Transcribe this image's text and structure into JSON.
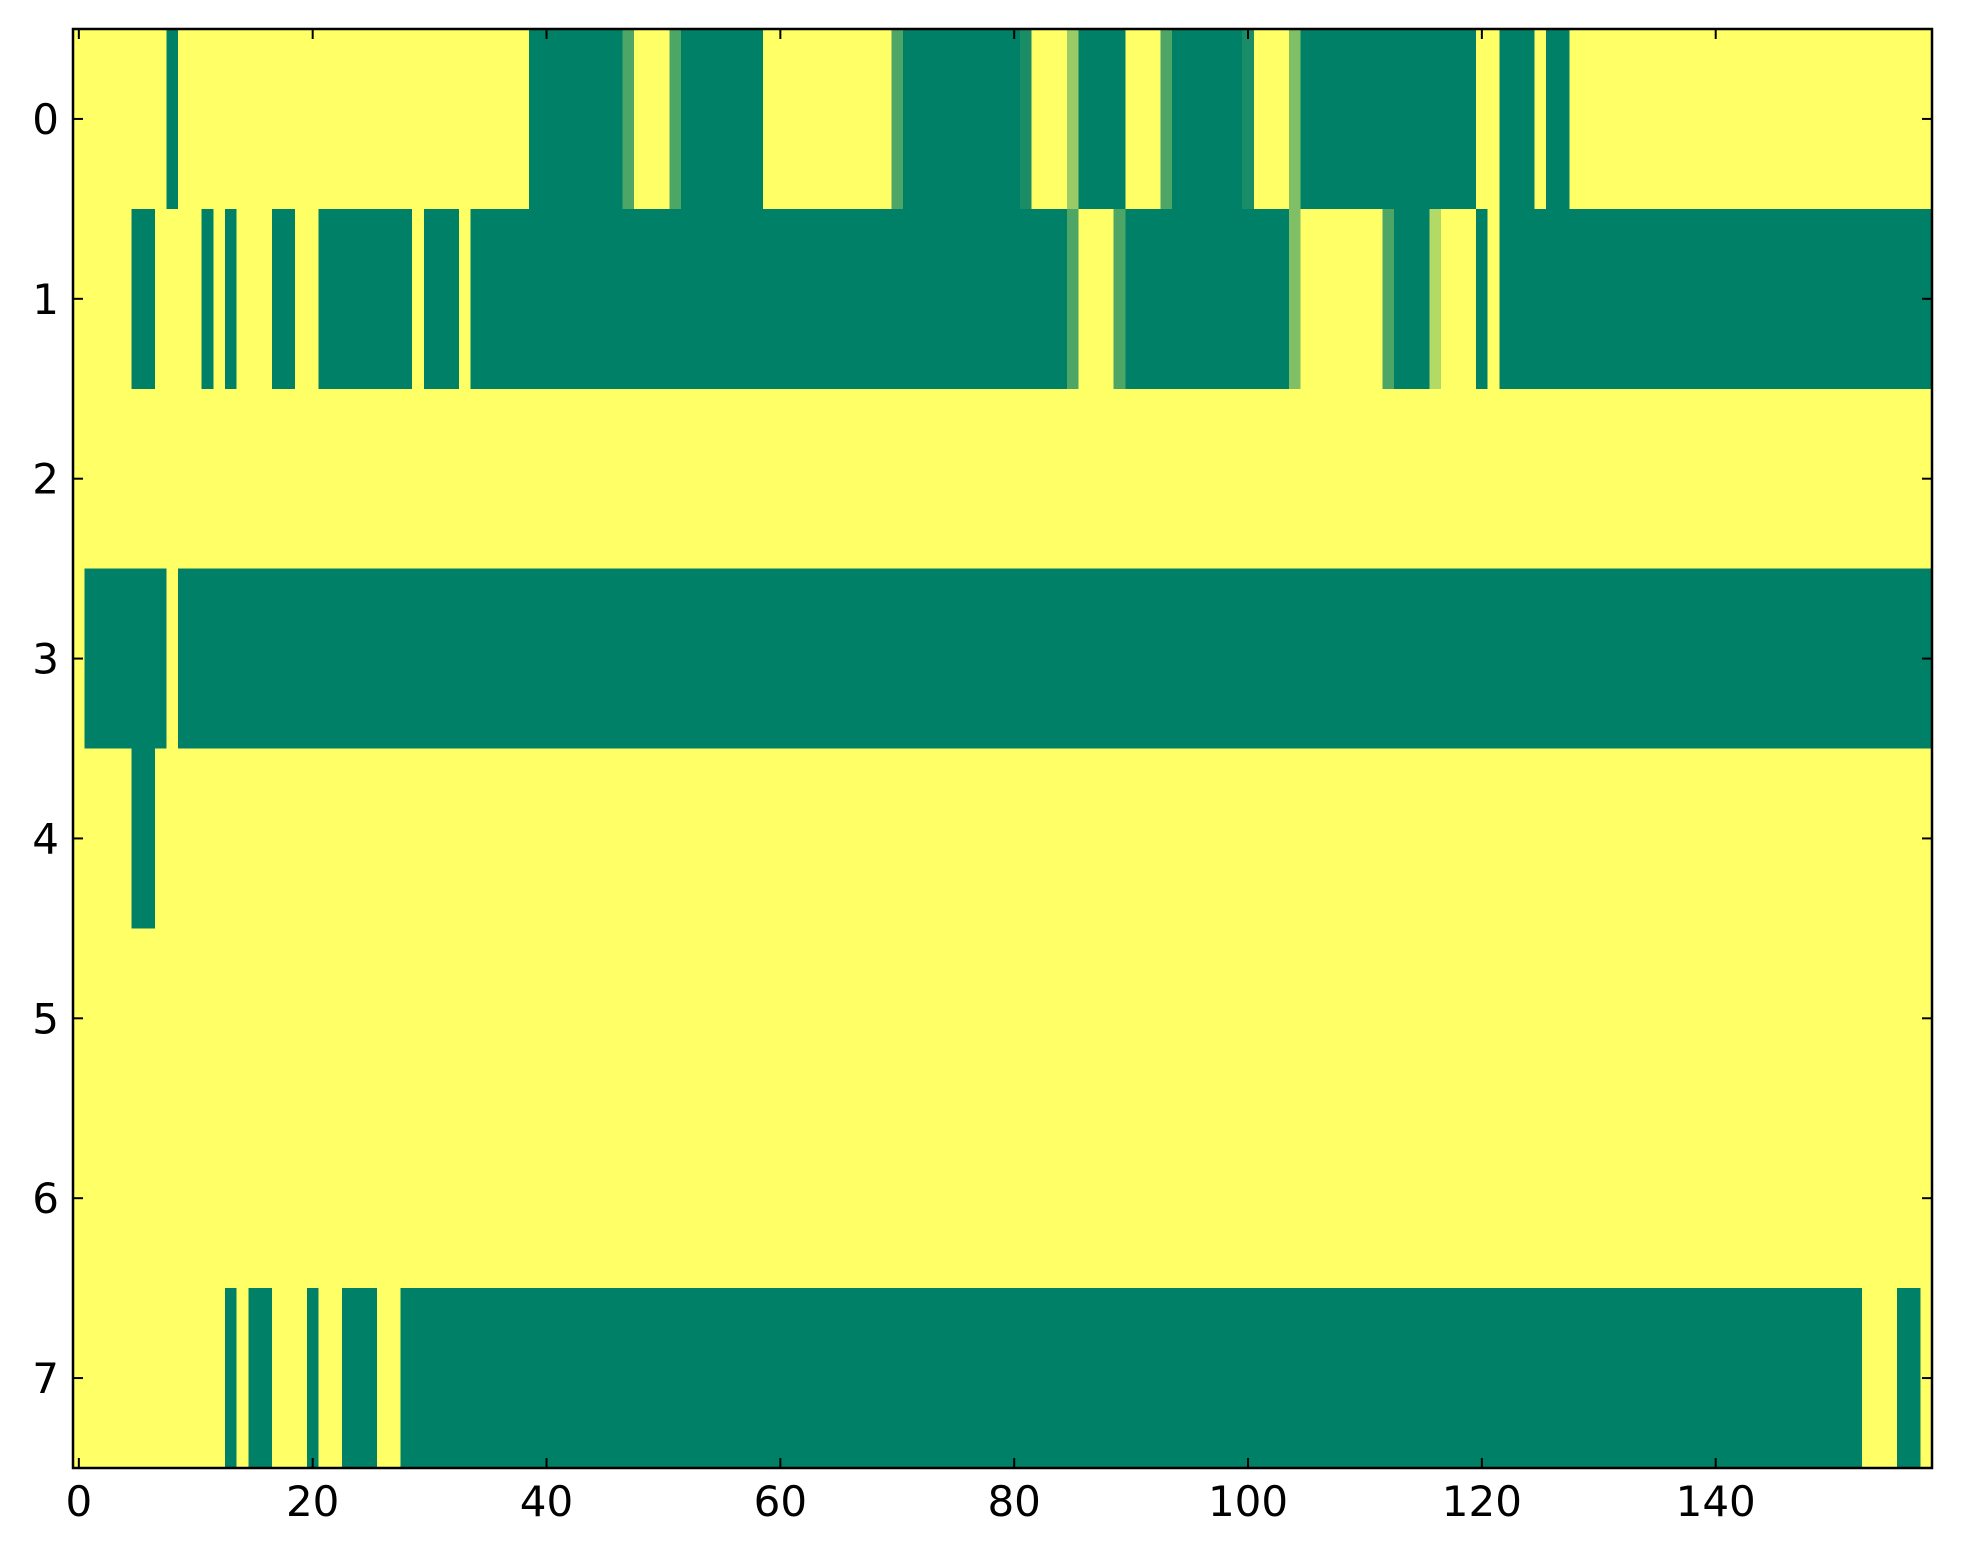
{
  "chart_data": {
    "type": "heatmap",
    "colormap": "summer",
    "zlim": [
      0,
      1
    ],
    "xlim": [
      -0.5,
      158.5
    ],
    "ylim": [
      7.5,
      -0.5
    ],
    "xticks": [
      0,
      20,
      40,
      60,
      80,
      100,
      120,
      140
    ],
    "yticks": [
      0,
      1,
      2,
      3,
      4,
      5,
      6,
      7
    ],
    "z": [
      [
        1,
        1,
        1,
        1,
        1,
        1,
        1,
        1,
        0,
        1,
        1,
        1,
        1,
        1,
        1,
        1,
        1,
        1,
        1,
        1,
        1,
        1,
        1,
        1,
        1,
        1,
        1,
        1,
        1,
        1,
        1,
        1,
        1,
        1,
        1,
        1,
        1,
        1,
        1,
        0,
        0,
        0,
        0,
        0,
        0,
        0,
        0,
        0.3,
        1,
        1,
        1,
        0.3,
        0,
        0,
        0,
        0,
        0,
        0,
        0,
        1,
        1,
        1,
        1,
        1,
        1,
        1,
        1,
        1,
        1,
        1,
        0.3,
        0,
        0,
        0,
        0,
        0,
        0,
        0,
        0,
        0,
        0,
        0.1,
        1,
        1,
        1,
        0.6,
        0,
        0,
        0,
        0,
        1,
        1,
        1,
        0.3,
        0,
        0,
        0,
        0,
        0,
        0,
        0.1,
        1,
        1,
        1,
        0.5,
        0,
        0,
        0,
        0,
        0,
        0,
        0,
        0,
        0,
        0,
        0,
        0,
        0,
        0,
        0,
        1,
        1,
        0,
        0,
        0,
        1,
        0,
        0,
        1,
        1,
        1,
        1,
        1,
        1,
        1,
        1,
        1,
        1,
        1,
        1,
        1,
        1,
        1,
        1,
        1,
        1,
        1,
        1,
        1,
        1,
        1,
        1,
        1,
        1,
        1,
        1,
        1,
        1,
        1
      ],
      [
        1,
        1,
        1,
        1,
        1,
        0,
        0,
        1,
        1,
        1,
        1,
        0,
        1,
        0,
        1,
        1,
        1,
        0,
        0,
        1,
        1,
        0,
        0,
        0,
        0,
        0,
        0,
        0,
        0,
        1,
        0,
        0,
        0,
        1,
        0,
        0,
        0,
        0,
        0,
        0,
        0,
        0,
        0,
        0,
        0,
        0,
        0,
        0,
        0,
        0,
        0,
        0,
        0,
        0,
        0,
        0,
        0,
        0,
        0,
        0,
        0,
        0,
        0,
        0,
        0,
        0,
        0,
        0,
        0,
        0,
        0,
        0,
        0,
        0,
        0,
        0,
        0,
        0,
        0,
        0,
        0,
        0,
        0,
        0,
        0,
        0.3,
        1,
        1,
        1,
        0.3,
        0,
        0,
        0,
        0,
        0,
        0,
        0,
        0,
        0,
        0,
        0,
        0,
        0,
        0,
        0.5,
        1,
        1,
        1,
        1,
        1,
        1,
        1,
        0.3,
        0,
        0,
        0,
        0.7,
        1,
        1,
        1,
        0,
        1,
        0,
        0,
        0,
        0,
        0,
        0,
        0,
        0,
        0,
        0,
        0,
        0,
        0,
        0,
        0,
        0,
        0,
        0,
        0,
        0,
        0,
        0,
        0,
        0,
        0,
        0,
        0,
        0,
        0,
        0,
        0,
        0,
        0,
        0,
        0,
        0,
        0
      ],
      [
        1,
        1,
        1,
        1,
        1,
        1,
        1,
        1,
        1,
        1,
        1,
        1,
        1,
        1,
        1,
        1,
        1,
        1,
        1,
        1,
        1,
        1,
        1,
        1,
        1,
        1,
        1,
        1,
        1,
        1,
        1,
        1,
        1,
        1,
        1,
        1,
        1,
        1,
        1,
        1,
        1,
        1,
        1,
        1,
        1,
        1,
        1,
        1,
        1,
        1,
        1,
        1,
        1,
        1,
        1,
        1,
        1,
        1,
        1,
        1,
        1,
        1,
        1,
        1,
        1,
        1,
        1,
        1,
        1,
        1,
        1,
        1,
        1,
        1,
        1,
        1,
        1,
        1,
        1,
        1,
        1,
        1,
        1,
        1,
        1,
        1,
        1,
        1,
        1,
        1,
        1,
        1,
        1,
        1,
        1,
        1,
        1,
        1,
        1,
        1,
        1,
        1,
        1,
        1,
        1,
        1,
        1,
        1,
        1,
        1,
        1,
        1,
        1,
        1,
        1,
        1,
        1,
        1,
        1,
        1,
        1,
        1,
        1,
        1,
        1,
        1,
        1,
        1,
        1,
        1,
        1,
        1,
        1,
        1,
        1,
        1,
        1,
        1,
        1,
        1,
        1,
        1,
        1,
        1,
        1,
        1,
        1,
        1,
        1,
        1,
        1,
        1,
        1,
        1,
        1,
        1,
        1,
        1,
        1
      ],
      [
        1,
        0,
        0,
        0,
        0,
        0,
        0,
        0,
        1,
        0,
        0,
        0,
        0,
        0,
        0,
        0,
        0,
        0,
        0,
        0,
        0,
        0,
        0,
        0,
        0,
        0,
        0,
        0,
        0,
        0,
        0,
        0,
        0,
        0,
        0,
        0,
        0,
        0,
        0,
        0,
        0,
        0,
        0,
        0,
        0,
        0,
        0,
        0,
        0,
        0,
        0,
        0,
        0,
        0,
        0,
        0,
        0,
        0,
        0,
        0,
        0,
        0,
        0,
        0,
        0,
        0,
        0,
        0,
        0,
        0,
        0,
        0,
        0,
        0,
        0,
        0,
        0,
        0,
        0,
        0,
        0,
        0,
        0,
        0,
        0,
        0,
        0,
        0,
        0,
        0,
        0,
        0,
        0,
        0,
        0,
        0,
        0,
        0,
        0,
        0,
        0,
        0,
        0,
        0,
        0,
        0,
        0,
        0,
        0,
        0,
        0,
        0,
        0,
        0,
        0,
        0,
        0,
        0,
        0,
        0,
        0,
        0,
        0,
        0,
        0,
        0,
        0,
        0,
        0,
        0,
        0,
        0,
        0,
        0,
        0,
        0,
        0,
        0,
        0,
        0,
        0,
        0,
        0,
        0,
        0,
        0,
        0,
        0,
        0,
        0,
        0,
        0,
        0,
        0,
        0,
        0,
        0,
        0,
        0
      ],
      [
        1,
        1,
        1,
        1,
        1,
        0,
        0,
        1,
        1,
        1,
        1,
        1,
        1,
        1,
        1,
        1,
        1,
        1,
        1,
        1,
        1,
        1,
        1,
        1,
        1,
        1,
        1,
        1,
        1,
        1,
        1,
        1,
        1,
        1,
        1,
        1,
        1,
        1,
        1,
        1,
        1,
        1,
        1,
        1,
        1,
        1,
        1,
        1,
        1,
        1,
        1,
        1,
        1,
        1,
        1,
        1,
        1,
        1,
        1,
        1,
        1,
        1,
        1,
        1,
        1,
        1,
        1,
        1,
        1,
        1,
        1,
        1,
        1,
        1,
        1,
        1,
        1,
        1,
        1,
        1,
        1,
        1,
        1,
        1,
        1,
        1,
        1,
        1,
        1,
        1,
        1,
        1,
        1,
        1,
        1,
        1,
        1,
        1,
        1,
        1,
        1,
        1,
        1,
        1,
        1,
        1,
        1,
        1,
        1,
        1,
        1,
        1,
        1,
        1,
        1,
        1,
        1,
        1,
        1,
        1,
        1,
        1,
        1,
        1,
        1,
        1,
        1,
        1,
        1,
        1,
        1,
        1,
        1,
        1,
        1,
        1,
        1,
        1,
        1,
        1,
        1,
        1,
        1,
        1,
        1,
        1,
        1,
        1,
        1,
        1,
        1,
        1,
        1,
        1,
        1,
        1,
        1,
        1,
        1
      ],
      [
        1,
        1,
        1,
        1,
        1,
        1,
        1,
        1,
        1,
        1,
        1,
        1,
        1,
        1,
        1,
        1,
        1,
        1,
        1,
        1,
        1,
        1,
        1,
        1,
        1,
        1,
        1,
        1,
        1,
        1,
        1,
        1,
        1,
        1,
        1,
        1,
        1,
        1,
        1,
        1,
        1,
        1,
        1,
        1,
        1,
        1,
        1,
        1,
        1,
        1,
        1,
        1,
        1,
        1,
        1,
        1,
        1,
        1,
        1,
        1,
        1,
        1,
        1,
        1,
        1,
        1,
        1,
        1,
        1,
        1,
        1,
        1,
        1,
        1,
        1,
        1,
        1,
        1,
        1,
        1,
        1,
        1,
        1,
        1,
        1,
        1,
        1,
        1,
        1,
        1,
        1,
        1,
        1,
        1,
        1,
        1,
        1,
        1,
        1,
        1,
        1,
        1,
        1,
        1,
        1,
        1,
        1,
        1,
        1,
        1,
        1,
        1,
        1,
        1,
        1,
        1,
        1,
        1,
        1,
        1,
        1,
        1,
        1,
        1,
        1,
        1,
        1,
        1,
        1,
        1,
        1,
        1,
        1,
        1,
        1,
        1,
        1,
        1,
        1,
        1,
        1,
        1,
        1,
        1,
        1,
        1,
        1,
        1,
        1,
        1,
        1,
        1,
        1,
        1,
        1,
        1,
        1,
        1,
        1
      ],
      [
        1,
        1,
        1,
        1,
        1,
        1,
        1,
        1,
        1,
        1,
        1,
        1,
        1,
        1,
        1,
        1,
        1,
        1,
        1,
        1,
        1,
        1,
        1,
        1,
        1,
        1,
        1,
        1,
        1,
        1,
        1,
        1,
        1,
        1,
        1,
        1,
        1,
        1,
        1,
        1,
        1,
        1,
        1,
        1,
        1,
        1,
        1,
        1,
        1,
        1,
        1,
        1,
        1,
        1,
        1,
        1,
        1,
        1,
        1,
        1,
        1,
        1,
        1,
        1,
        1,
        1,
        1,
        1,
        1,
        1,
        1,
        1,
        1,
        1,
        1,
        1,
        1,
        1,
        1,
        1,
        1,
        1,
        1,
        1,
        1,
        1,
        1,
        1,
        1,
        1,
        1,
        1,
        1,
        1,
        1,
        1,
        1,
        1,
        1,
        1,
        1,
        1,
        1,
        1,
        1,
        1,
        1,
        1,
        1,
        1,
        1,
        1,
        1,
        1,
        1,
        1,
        1,
        1,
        1,
        1,
        1,
        1,
        1,
        1,
        1,
        1,
        1,
        1,
        1,
        1,
        1,
        1,
        1,
        1,
        1,
        1,
        1,
        1,
        1,
        1,
        1,
        1,
        1,
        1,
        1,
        1,
        1,
        1,
        1,
        1,
        1,
        1,
        1,
        1,
        1,
        1,
        1,
        1,
        1
      ],
      [
        1,
        1,
        1,
        1,
        1,
        1,
        1,
        1,
        1,
        1,
        1,
        1,
        1,
        0,
        1,
        0,
        0,
        1,
        1,
        1,
        0,
        1,
        1,
        0,
        0,
        0,
        1,
        1,
        0,
        0,
        0,
        0,
        0,
        0,
        0,
        0,
        0,
        0,
        0,
        0,
        0,
        0,
        0,
        0,
        0,
        0,
        0,
        0,
        0,
        0,
        0,
        0,
        0,
        0,
        0,
        0,
        0,
        0,
        0,
        0,
        0,
        0,
        0,
        0,
        0,
        0,
        0,
        0,
        0,
        0,
        0,
        0,
        0,
        0,
        0,
        0,
        0,
        0,
        0,
        0,
        0,
        0,
        0,
        0,
        0,
        0,
        0,
        0,
        0,
        0,
        0,
        0,
        0,
        0,
        0,
        0,
        0,
        0,
        0,
        0,
        0,
        0,
        0,
        0,
        0,
        0,
        0,
        0,
        0,
        0,
        0,
        0,
        0,
        0,
        0,
        0,
        0,
        0,
        0,
        0,
        0,
        0,
        0,
        0,
        0,
        0,
        0,
        0,
        0,
        0,
        0,
        0,
        0,
        0,
        0,
        0,
        0,
        0,
        0,
        0,
        0,
        0,
        0,
        0,
        0,
        0,
        0,
        0,
        0,
        0,
        0,
        0,
        0,
        1,
        1,
        1,
        0,
        0,
        1
      ]
    ]
  }
}
